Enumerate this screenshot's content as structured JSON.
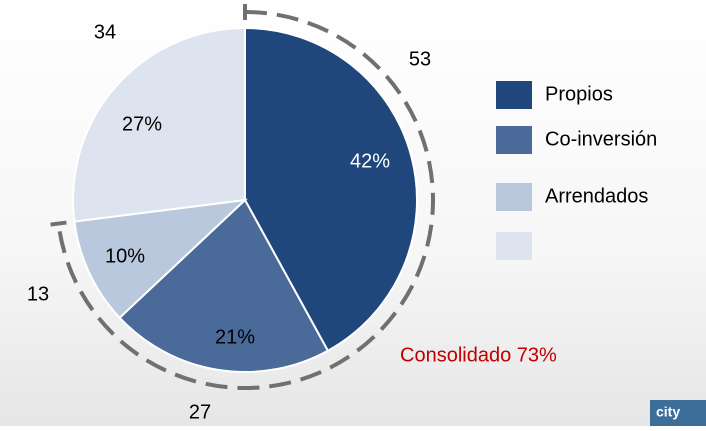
{
  "chart_data": {
    "type": "pie",
    "categories": [
      "Propios",
      "Co-inversión",
      "Arrendados",
      null
    ],
    "values": [
      42,
      21,
      10,
      27
    ],
    "value_labels": [
      "42%",
      "21%",
      "10%",
      "27%"
    ],
    "counts": [
      53,
      27,
      13,
      34
    ],
    "colors": [
      "#1f477b",
      "#4a6a9a",
      "#b9c8dc",
      "#dde4ef"
    ],
    "annotation": "Consolidado 73%",
    "logo": "city"
  }
}
